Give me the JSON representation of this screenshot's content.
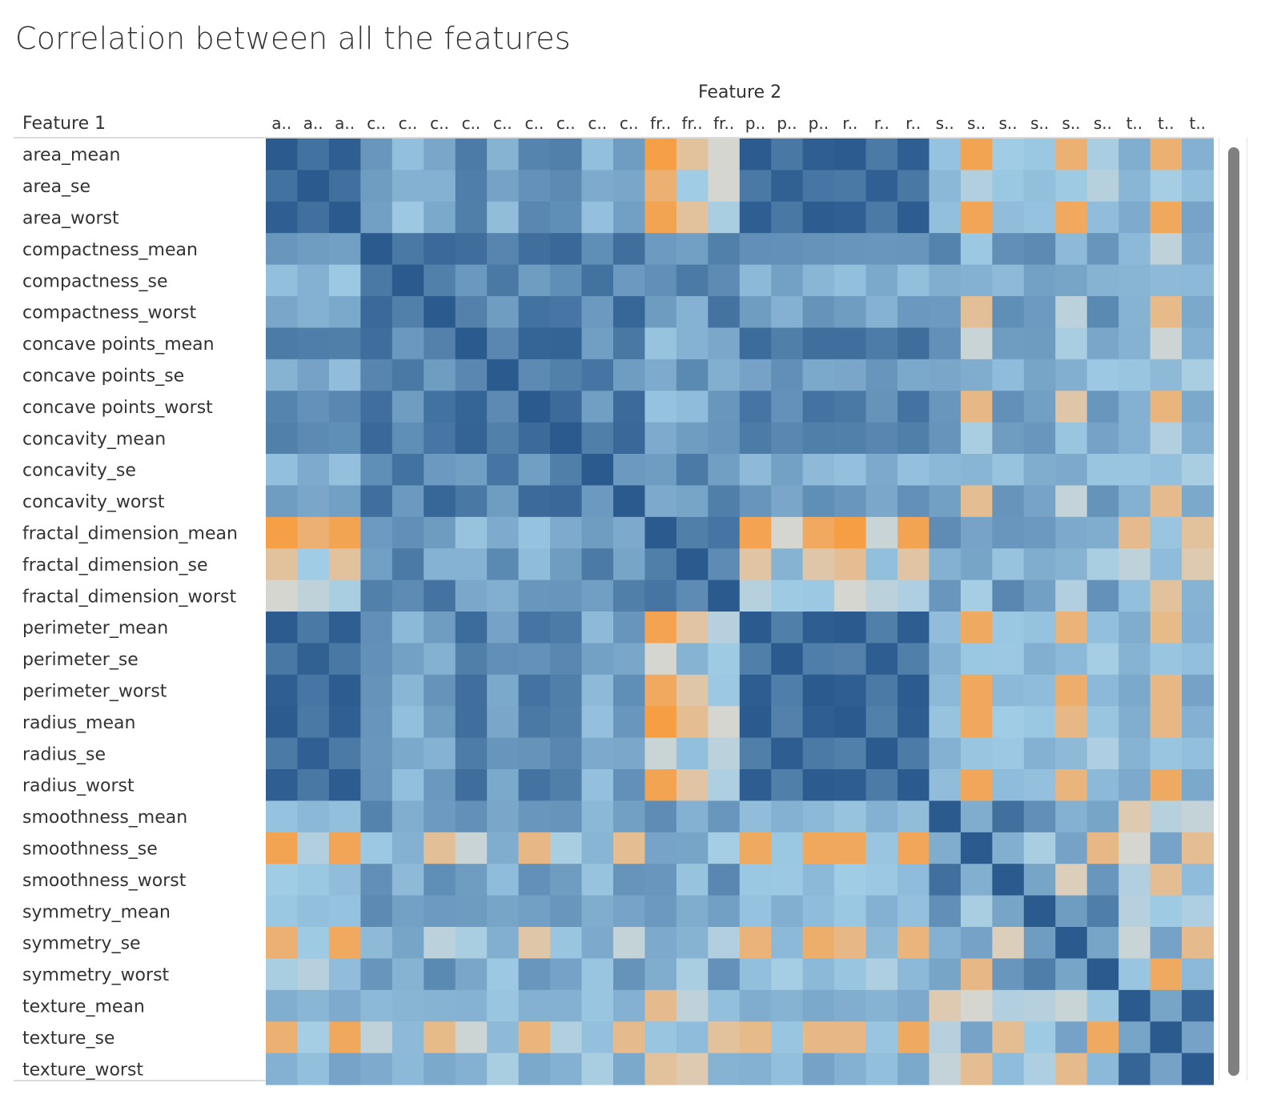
{
  "page": {
    "title": "Correlation between all the features"
  },
  "chart_data": {
    "type": "heatmap",
    "title": "Correlation between all the features",
    "xlabel": "Feature 2",
    "ylabel": "Feature 1",
    "x_tick_labels": [
      "a..",
      "a..",
      "a..",
      "c..",
      "c..",
      "c..",
      "c..",
      "c..",
      "c..",
      "c..",
      "c..",
      "c..",
      "fr..",
      "fr..",
      "fr..",
      "p..",
      "p..",
      "p..",
      "r..",
      "r..",
      "r..",
      "s..",
      "s..",
      "s..",
      "s..",
      "s..",
      "s..",
      "t..",
      "t..",
      "t.."
    ],
    "features": [
      "area_mean",
      "area_se",
      "area_worst",
      "compactness_mean",
      "compactness_se",
      "compactness_worst",
      "concave points_mean",
      "concave points_se",
      "concave points_worst",
      "concavity_mean",
      "concavity_se",
      "concavity_worst",
      "fractal_dimension_mean",
      "fractal_dimension_se",
      "fractal_dimension_worst",
      "perimeter_mean",
      "perimeter_se",
      "perimeter_worst",
      "radius_mean",
      "radius_se",
      "radius_worst",
      "smoothness_mean",
      "smoothness_se",
      "smoothness_worst",
      "symmetry_mean",
      "symmetry_se",
      "symmetry_worst",
      "texture_mean",
      "texture_se",
      "texture_worst"
    ],
    "value_range": [
      -0.35,
      1
    ],
    "color_scale": {
      "negative": "#f89a3a",
      "zero": "#d6d6d0",
      "positive": "#2a5a8e"
    },
    "values": [
      [
        1.0,
        0.8,
        0.96,
        0.5,
        0.2,
        0.38,
        0.72,
        0.28,
        0.65,
        0.68,
        0.2,
        0.45,
        -0.3,
        -0.05,
        0.0,
        0.99,
        0.75,
        0.96,
        0.99,
        0.73,
        0.96,
        0.18,
        -0.25,
        0.12,
        0.15,
        -0.15,
        0.1,
        0.32,
        -0.15,
        0.3
      ],
      [
        0.8,
        1.0,
        0.81,
        0.45,
        0.3,
        0.3,
        0.7,
        0.41,
        0.54,
        0.6,
        0.34,
        0.38,
        -0.15,
        0.12,
        0.0,
        0.74,
        0.94,
        0.76,
        0.74,
        0.95,
        0.75,
        0.25,
        0.08,
        0.15,
        0.2,
        0.13,
        0.07,
        0.26,
        0.11,
        0.2
      ],
      [
        0.96,
        0.81,
        1.0,
        0.43,
        0.14,
        0.36,
        0.69,
        0.21,
        0.62,
        0.57,
        0.19,
        0.43,
        -0.25,
        -0.05,
        0.1,
        0.96,
        0.75,
        0.98,
        0.95,
        0.73,
        0.98,
        0.2,
        -0.24,
        0.21,
        0.18,
        -0.21,
        0.21,
        0.34,
        -0.22,
        0.4
      ],
      [
        0.5,
        0.45,
        0.43,
        1.0,
        0.74,
        0.87,
        0.83,
        0.64,
        0.82,
        0.88,
        0.57,
        0.82,
        0.47,
        0.43,
        0.68,
        0.56,
        0.55,
        0.53,
        0.51,
        0.5,
        0.51,
        0.66,
        0.14,
        0.56,
        0.6,
        0.23,
        0.51,
        0.24,
        0.05,
        0.34
      ],
      [
        0.2,
        0.3,
        0.14,
        0.74,
        1.0,
        0.68,
        0.49,
        0.74,
        0.45,
        0.57,
        0.8,
        0.48,
        0.56,
        0.73,
        0.59,
        0.24,
        0.42,
        0.26,
        0.2,
        0.36,
        0.2,
        0.32,
        0.3,
        0.23,
        0.42,
        0.39,
        0.28,
        0.27,
        0.23,
        0.24
      ],
      [
        0.38,
        0.3,
        0.36,
        0.87,
        0.68,
        1.0,
        0.67,
        0.45,
        0.8,
        0.76,
        0.48,
        0.89,
        0.46,
        0.29,
        0.79,
        0.45,
        0.3,
        0.53,
        0.45,
        0.29,
        0.49,
        0.47,
        -0.06,
        0.57,
        0.47,
        0.06,
        0.61,
        0.28,
        -0.09,
        0.36
      ],
      [
        0.72,
        0.7,
        0.69,
        0.83,
        0.49,
        0.67,
        1.0,
        0.62,
        0.91,
        0.92,
        0.44,
        0.75,
        0.17,
        0.29,
        0.37,
        0.85,
        0.69,
        0.82,
        0.82,
        0.71,
        0.83,
        0.55,
        0.03,
        0.45,
        0.46,
        0.1,
        0.38,
        0.29,
        0.02,
        0.3
      ],
      [
        0.28,
        0.41,
        0.21,
        0.64,
        0.74,
        0.45,
        0.62,
        1.0,
        0.6,
        0.68,
        0.77,
        0.45,
        0.34,
        0.61,
        0.31,
        0.41,
        0.56,
        0.36,
        0.38,
        0.51,
        0.36,
        0.38,
        0.33,
        0.22,
        0.39,
        0.31,
        0.14,
        0.16,
        0.23,
        0.1
      ],
      [
        0.65,
        0.54,
        0.62,
        0.82,
        0.45,
        0.8,
        0.91,
        0.6,
        1.0,
        0.86,
        0.44,
        0.86,
        0.18,
        0.22,
        0.5,
        0.77,
        0.54,
        0.79,
        0.74,
        0.53,
        0.79,
        0.5,
        -0.1,
        0.55,
        0.43,
        -0.03,
        0.5,
        0.3,
        -0.12,
        0.36
      ],
      [
        0.68,
        0.6,
        0.57,
        0.88,
        0.57,
        0.76,
        0.92,
        0.68,
        0.86,
        1.0,
        0.69,
        0.88,
        0.34,
        0.45,
        0.51,
        0.72,
        0.62,
        0.69,
        0.68,
        0.63,
        0.69,
        0.52,
        0.1,
        0.45,
        0.5,
        0.16,
        0.41,
        0.3,
        0.08,
        0.3
      ],
      [
        0.2,
        0.34,
        0.19,
        0.57,
        0.8,
        0.48,
        0.44,
        0.77,
        0.44,
        0.69,
        1.0,
        0.48,
        0.45,
        0.73,
        0.44,
        0.23,
        0.42,
        0.23,
        0.19,
        0.35,
        0.19,
        0.25,
        0.27,
        0.17,
        0.33,
        0.35,
        0.16,
        0.16,
        0.19,
        0.1
      ],
      [
        0.45,
        0.38,
        0.43,
        0.82,
        0.48,
        0.89,
        0.75,
        0.45,
        0.86,
        0.88,
        0.48,
        1.0,
        0.35,
        0.39,
        0.69,
        0.51,
        0.38,
        0.57,
        0.5,
        0.37,
        0.55,
        0.43,
        -0.07,
        0.52,
        0.4,
        0.04,
        0.53,
        0.3,
        -0.08,
        0.36
      ],
      [
        -0.3,
        -0.15,
        -0.25,
        0.47,
        0.56,
        0.46,
        0.17,
        0.34,
        0.18,
        0.34,
        0.45,
        0.35,
        1.0,
        0.69,
        0.77,
        -0.26,
        0.0,
        -0.21,
        -0.31,
        0.03,
        -0.25,
        0.58,
        0.4,
        0.5,
        0.48,
        0.35,
        0.33,
        -0.08,
        0.16,
        -0.05
      ],
      [
        -0.05,
        0.12,
        -0.05,
        0.43,
        0.73,
        0.29,
        0.29,
        0.61,
        0.22,
        0.45,
        0.73,
        0.39,
        0.69,
        1.0,
        0.59,
        -0.04,
        0.28,
        -0.03,
        -0.07,
        0.2,
        -0.04,
        0.3,
        0.39,
        0.17,
        0.33,
        0.28,
        0.1,
        0.05,
        0.22,
        -0.02
      ],
      [
        0.0,
        0.05,
        0.1,
        0.68,
        0.59,
        0.79,
        0.37,
        0.31,
        0.5,
        0.51,
        0.44,
        0.69,
        0.77,
        0.59,
        1.0,
        0.07,
        0.13,
        0.14,
        0.0,
        0.06,
        0.09,
        0.5,
        0.11,
        0.62,
        0.43,
        0.08,
        0.54,
        0.2,
        -0.05,
        0.28
      ],
      [
        0.99,
        0.74,
        0.96,
        0.56,
        0.24,
        0.45,
        0.85,
        0.41,
        0.77,
        0.72,
        0.23,
        0.51,
        -0.26,
        -0.04,
        0.07,
        1.0,
        0.69,
        0.97,
        1.0,
        0.69,
        0.97,
        0.21,
        -0.2,
        0.15,
        0.18,
        -0.13,
        0.2,
        0.33,
        -0.09,
        0.3
      ],
      [
        0.75,
        0.94,
        0.75,
        0.55,
        0.42,
        0.3,
        0.69,
        0.56,
        0.54,
        0.62,
        0.42,
        0.38,
        0.0,
        0.28,
        0.13,
        0.69,
        1.0,
        0.7,
        0.67,
        0.97,
        0.69,
        0.3,
        0.15,
        0.14,
        0.31,
        0.24,
        0.11,
        0.28,
        0.16,
        0.2
      ],
      [
        0.96,
        0.76,
        0.98,
        0.53,
        0.26,
        0.53,
        0.82,
        0.36,
        0.79,
        0.69,
        0.23,
        0.57,
        -0.21,
        -0.03,
        0.14,
        0.97,
        0.7,
        1.0,
        0.96,
        0.73,
        0.99,
        0.24,
        -0.22,
        0.24,
        0.22,
        -0.17,
        0.24,
        0.36,
        -0.1,
        0.41
      ],
      [
        0.99,
        0.74,
        0.95,
        0.51,
        0.2,
        0.45,
        0.82,
        0.38,
        0.74,
        0.68,
        0.19,
        0.5,
        -0.31,
        -0.07,
        0.0,
        1.0,
        0.67,
        0.96,
        1.0,
        0.68,
        0.97,
        0.17,
        -0.22,
        0.12,
        0.15,
        -0.1,
        0.16,
        0.32,
        -0.1,
        0.3
      ],
      [
        0.73,
        0.95,
        0.73,
        0.5,
        0.36,
        0.29,
        0.71,
        0.51,
        0.53,
        0.63,
        0.35,
        0.37,
        0.03,
        0.2,
        0.06,
        0.69,
        0.97,
        0.73,
        0.68,
        1.0,
        0.72,
        0.3,
        0.16,
        0.14,
        0.3,
        0.23,
        0.09,
        0.28,
        0.16,
        0.2
      ],
      [
        0.96,
        0.75,
        0.98,
        0.51,
        0.2,
        0.49,
        0.83,
        0.36,
        0.79,
        0.69,
        0.19,
        0.55,
        -0.25,
        -0.04,
        0.09,
        0.97,
        0.69,
        0.99,
        0.97,
        0.72,
        1.0,
        0.21,
        -0.23,
        0.22,
        0.19,
        -0.12,
        0.24,
        0.35,
        -0.2,
        0.36
      ],
      [
        0.18,
        0.25,
        0.2,
        0.66,
        0.32,
        0.47,
        0.55,
        0.38,
        0.5,
        0.52,
        0.25,
        0.43,
        0.58,
        0.3,
        0.5,
        0.21,
        0.3,
        0.24,
        0.17,
        0.3,
        0.21,
        1.0,
        0.33,
        0.81,
        0.56,
        0.3,
        0.39,
        -0.02,
        0.07,
        0.04
      ],
      [
        -0.25,
        0.08,
        -0.24,
        0.14,
        0.3,
        -0.06,
        0.03,
        0.33,
        -0.1,
        0.1,
        0.27,
        -0.07,
        0.4,
        0.39,
        0.11,
        -0.2,
        0.15,
        -0.22,
        -0.22,
        0.16,
        -0.23,
        0.33,
        1.0,
        0.31,
        0.1,
        0.41,
        -0.1,
        0.0,
        0.4,
        -0.07
      ],
      [
        0.12,
        0.15,
        0.21,
        0.56,
        0.23,
        0.57,
        0.45,
        0.22,
        0.55,
        0.45,
        0.17,
        0.52,
        0.5,
        0.17,
        0.62,
        0.15,
        0.14,
        0.24,
        0.12,
        0.14,
        0.22,
        0.81,
        0.31,
        1.0,
        0.39,
        -0.01,
        0.5,
        0.08,
        -0.07,
        0.22
      ],
      [
        0.15,
        0.2,
        0.18,
        0.6,
        0.42,
        0.47,
        0.46,
        0.39,
        0.43,
        0.5,
        0.33,
        0.4,
        0.48,
        0.33,
        0.43,
        0.18,
        0.31,
        0.22,
        0.15,
        0.3,
        0.19,
        0.56,
        0.1,
        0.39,
        1.0,
        0.45,
        0.7,
        0.07,
        0.13,
        0.09
      ],
      [
        -0.15,
        0.13,
        -0.21,
        0.23,
        0.39,
        0.06,
        0.1,
        0.31,
        -0.03,
        0.16,
        0.35,
        0.04,
        0.35,
        0.28,
        0.08,
        -0.13,
        0.24,
        -0.17,
        -0.1,
        0.23,
        -0.12,
        0.3,
        0.41,
        -0.01,
        0.45,
        1.0,
        0.39,
        0.03,
        0.41,
        -0.08
      ],
      [
        0.1,
        0.07,
        0.21,
        0.51,
        0.28,
        0.61,
        0.38,
        0.14,
        0.5,
        0.41,
        0.16,
        0.53,
        0.33,
        0.1,
        0.54,
        0.2,
        0.11,
        0.24,
        0.16,
        0.09,
        0.24,
        0.39,
        -0.1,
        0.5,
        0.7,
        0.39,
        1.0,
        0.16,
        -0.2,
        0.24
      ],
      [
        0.32,
        0.26,
        0.34,
        0.24,
        0.27,
        0.28,
        0.29,
        0.16,
        0.3,
        0.3,
        0.16,
        0.3,
        -0.08,
        0.05,
        0.2,
        0.33,
        0.28,
        0.36,
        0.32,
        0.28,
        0.35,
        -0.02,
        0.0,
        0.08,
        0.07,
        0.03,
        0.16,
        1.0,
        0.39,
        0.91
      ],
      [
        -0.15,
        0.11,
        -0.22,
        0.05,
        0.23,
        -0.09,
        0.02,
        0.23,
        -0.12,
        0.08,
        0.19,
        -0.08,
        0.16,
        0.22,
        -0.05,
        -0.09,
        0.16,
        -0.1,
        -0.1,
        0.16,
        -0.2,
        0.07,
        0.4,
        -0.07,
        0.13,
        0.41,
        -0.2,
        0.39,
        1.0,
        0.41
      ],
      [
        0.3,
        0.2,
        0.4,
        0.34,
        0.24,
        0.36,
        0.3,
        0.1,
        0.36,
        0.3,
        0.1,
        0.36,
        -0.05,
        -0.02,
        0.28,
        0.3,
        0.2,
        0.41,
        0.3,
        0.2,
        0.36,
        0.04,
        -0.07,
        0.22,
        0.09,
        -0.08,
        0.24,
        0.91,
        0.41,
        1.0
      ]
    ]
  }
}
